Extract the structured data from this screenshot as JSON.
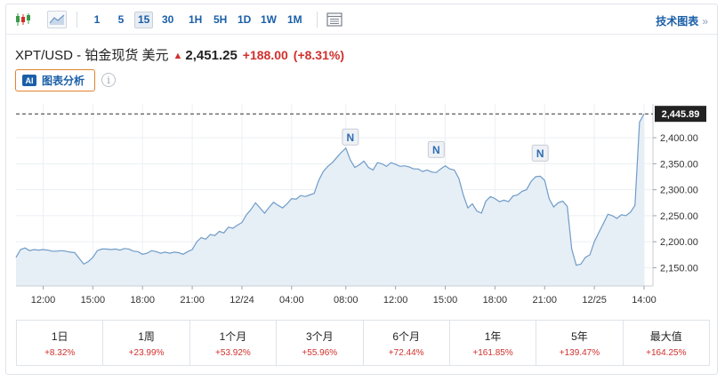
{
  "toolbar": {
    "timeframes": [
      "1",
      "5",
      "15",
      "30",
      "1H",
      "5H",
      "1D",
      "1W",
      "1M"
    ],
    "active_timeframe": "15",
    "tech_chart_label": "技术图表",
    "tech_chart_chevron": "»"
  },
  "quote": {
    "symbol_line": "XPT/USD - 铂金现货 美元",
    "direction_icon": "up-arrow",
    "price": "2,451.25",
    "change": "+188.00",
    "change_pct": "(+8.31%)"
  },
  "ai_button": {
    "badge": "AI",
    "label": "图表分析"
  },
  "info_icon_glyph": "i",
  "chart_data": {
    "type": "area",
    "x_tick_labels": [
      "12:00",
      "15:00",
      "18:00",
      "21:00",
      "12/24",
      "04:00",
      "08:00",
      "12:00",
      "15:00",
      "18:00",
      "21:00",
      "12/25",
      "14:00"
    ],
    "y_tick_labels": [
      "2,400.00",
      "2,350.00",
      "2,300.00",
      "2,250.00",
      "2,200.00",
      "2,150.00"
    ],
    "ylim": [
      2115,
      2465
    ],
    "current_value_label": "2,445.89",
    "current_value": 2445.89,
    "news_markers": [
      {
        "label": "N",
        "x_index": 74
      },
      {
        "label": "N",
        "x_index": 93
      },
      {
        "label": "N",
        "x_index": 116
      }
    ],
    "values": [
      2170,
      2185,
      2188,
      2183,
      2185,
      2184,
      2185,
      2184,
      2182,
      2182,
      2183,
      2182,
      2180,
      2179,
      2168,
      2157,
      2162,
      2170,
      2183,
      2186,
      2186,
      2185,
      2186,
      2184,
      2187,
      2186,
      2182,
      2181,
      2176,
      2178,
      2183,
      2181,
      2178,
      2180,
      2178,
      2180,
      2179,
      2176,
      2181,
      2185,
      2200,
      2208,
      2205,
      2214,
      2212,
      2220,
      2217,
      2228,
      2226,
      2232,
      2237,
      2252,
      2262,
      2275,
      2265,
      2255,
      2266,
      2276,
      2270,
      2265,
      2273,
      2283,
      2282,
      2289,
      2287,
      2290,
      2293,
      2318,
      2335,
      2345,
      2352,
      2362,
      2372,
      2380,
      2357,
      2343,
      2348,
      2355,
      2343,
      2338,
      2352,
      2350,
      2345,
      2352,
      2349,
      2345,
      2346,
      2344,
      2340,
      2340,
      2335,
      2338,
      2334,
      2333,
      2340,
      2346,
      2340,
      2338,
      2322,
      2290,
      2265,
      2273,
      2259,
      2255,
      2278,
      2287,
      2283,
      2277,
      2280,
      2277,
      2288,
      2290,
      2297,
      2300,
      2316,
      2325,
      2326,
      2318,
      2283,
      2267,
      2275,
      2278,
      2268,
      2186,
      2155,
      2157,
      2170,
      2175,
      2200,
      2218,
      2235,
      2253,
      2250,
      2245,
      2252,
      2250,
      2257,
      2270,
      2430,
      2445.89
    ]
  },
  "periods": [
    {
      "label": "1日",
      "value": "+8.32%"
    },
    {
      "label": "1周",
      "value": "+23.99%"
    },
    {
      "label": "1个月",
      "value": "+53.92%"
    },
    {
      "label": "3个月",
      "value": "+55.96%"
    },
    {
      "label": "6个月",
      "value": "+72.44%"
    },
    {
      "label": "1年",
      "value": "+161.85%"
    },
    {
      "label": "5年",
      "value": "+139.47%"
    },
    {
      "label": "最大值",
      "value": "+164.25%"
    }
  ],
  "colors": {
    "line": "#6f9cc8",
    "area_fill": "#e6eef6",
    "positive": "#d0312d",
    "link": "#1a5fa8",
    "price_tag_bg": "#222222"
  }
}
